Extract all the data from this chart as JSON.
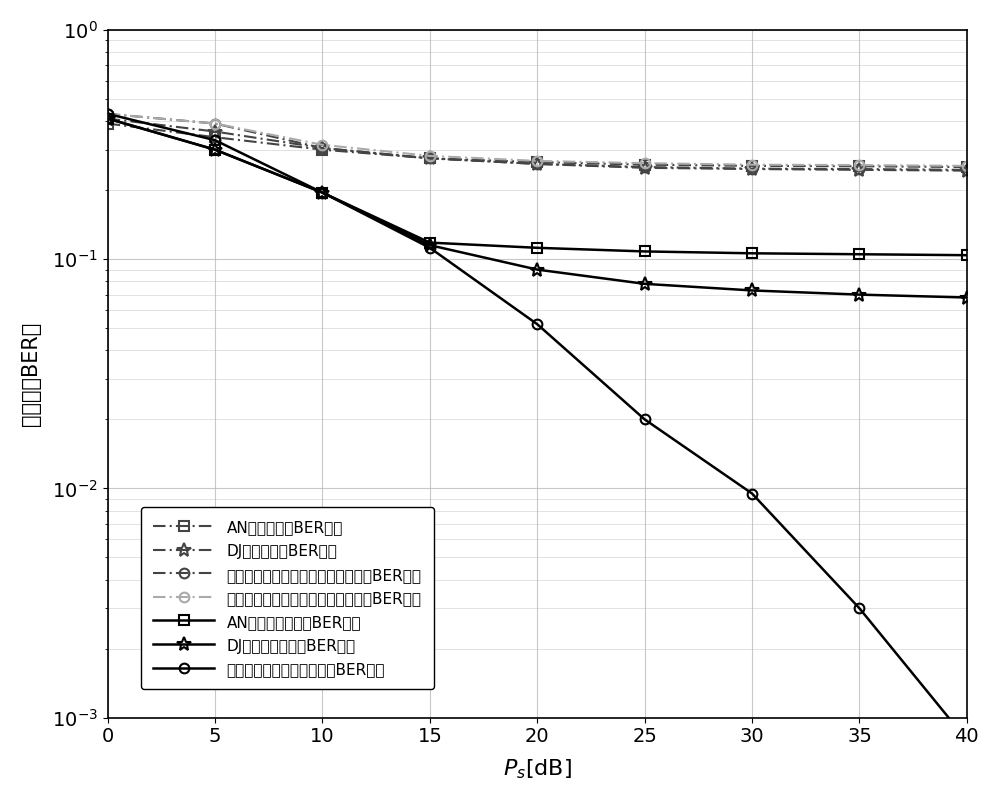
{
  "x": [
    0,
    5,
    10,
    15,
    20,
    25,
    30,
    35,
    40
  ],
  "series": [
    {
      "label": "AN方案中继处BER性能",
      "color": "#444444",
      "linestyle": "-.",
      "marker": "s",
      "markersize": 7,
      "linewidth": 1.5,
      "y": [
        0.39,
        0.34,
        0.3,
        0.275,
        0.265,
        0.258,
        0.255,
        0.254,
        0.252
      ],
      "fillstyle": "none",
      "dashes": [
        6,
        2,
        1,
        2
      ]
    },
    {
      "label": "DJ方案中继处BER性能",
      "color": "#444444",
      "linestyle": "-.",
      "marker": "*",
      "markersize": 10,
      "linewidth": 1.5,
      "y": [
        0.41,
        0.36,
        0.305,
        0.275,
        0.26,
        0.25,
        0.247,
        0.245,
        0.243
      ],
      "fillstyle": "none",
      "dashes": [
        6,
        2,
        1,
        2
      ]
    },
    {
      "label": "本发明所提方案实部信号接收中继处BER性能",
      "color": "#444444",
      "linestyle": "-.",
      "marker": "o",
      "markersize": 7,
      "linewidth": 1.5,
      "y": [
        0.43,
        0.39,
        0.305,
        0.275,
        0.26,
        0.252,
        0.248,
        0.247,
        0.245
      ],
      "fillstyle": "none",
      "dashes": [
        6,
        2,
        1,
        2
      ]
    },
    {
      "label": "本发明所提方案虚部信号接收中继处BER性能",
      "color": "#aaaaaa",
      "linestyle": "-.",
      "marker": "o",
      "markersize": 7,
      "linewidth": 1.5,
      "y": [
        0.43,
        0.39,
        0.315,
        0.282,
        0.268,
        0.262,
        0.258,
        0.257,
        0.255
      ],
      "fillstyle": "none",
      "dashes": [
        6,
        2,
        1,
        2
      ]
    },
    {
      "label": "AN方案目的节点处BER性能",
      "color": "#000000",
      "linestyle": "-",
      "marker": "s",
      "markersize": 7,
      "linewidth": 1.8,
      "y": [
        0.41,
        0.3,
        0.195,
        0.118,
        0.112,
        0.108,
        0.106,
        0.105,
        0.104
      ],
      "fillstyle": "none",
      "dashes": null
    },
    {
      "label": "DJ方案目的节点处BER性能",
      "color": "#000000",
      "linestyle": "-",
      "marker": "*",
      "markersize": 10,
      "linewidth": 1.8,
      "y": [
        0.41,
        0.3,
        0.195,
        0.115,
        0.09,
        0.078,
        0.073,
        0.07,
        0.068
      ],
      "fillstyle": "none",
      "dashes": null
    },
    {
      "label": "本发明所提方案目的节点处BER性能",
      "color": "#000000",
      "linestyle": "-",
      "marker": "o",
      "markersize": 7,
      "linewidth": 1.8,
      "y": [
        0.43,
        0.33,
        0.195,
        0.112,
        0.052,
        0.02,
        0.0095,
        0.003,
        0.0008
      ],
      "fillstyle": "none",
      "dashes": null
    }
  ],
  "xlabel_math": "$P_s$",
  "xlabel_suffix": "[dB]",
  "ylabel": "误码率（BER）",
  "xlim": [
    0,
    40
  ],
  "ylim_log": [
    -3,
    0
  ],
  "xticks": [
    0,
    5,
    10,
    15,
    20,
    25,
    30,
    35,
    40
  ],
  "background_color": "#ffffff",
  "grid_color": "#bbbbbb"
}
